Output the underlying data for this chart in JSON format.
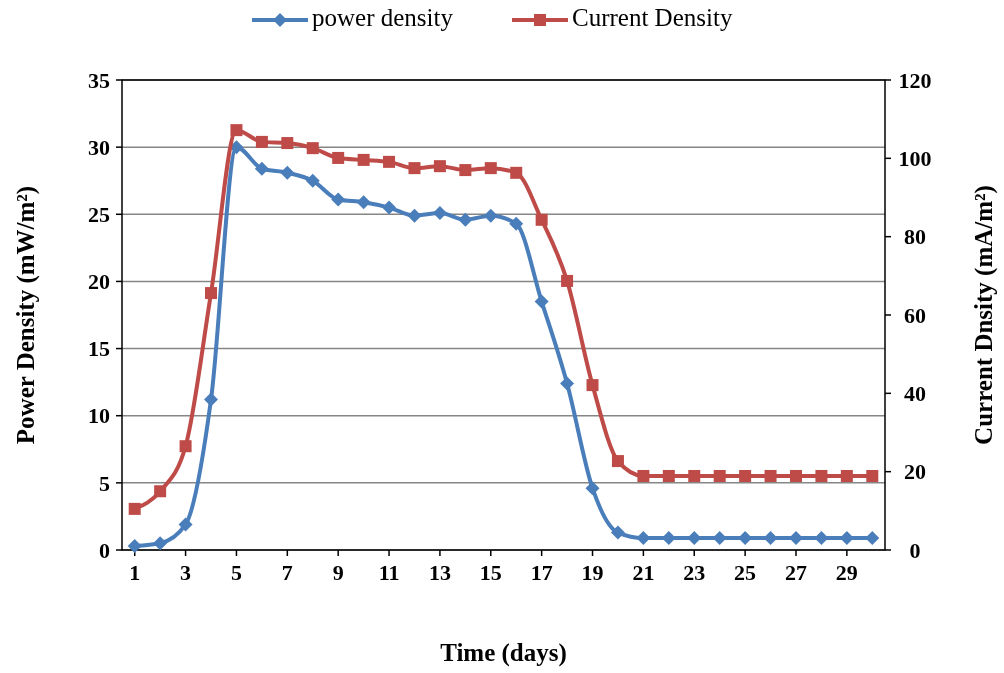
{
  "chart_data": {
    "type": "line",
    "xlabel": "Time (days)",
    "ylabel": "Power Density (mW/m²)",
    "y2label": "Current Dnsity (mA/m²)",
    "x": [
      1,
      2,
      3,
      4,
      5,
      6,
      7,
      8,
      9,
      10,
      11,
      12,
      13,
      14,
      15,
      16,
      17,
      18,
      19,
      20,
      21,
      22,
      23,
      24,
      25,
      26,
      27,
      28,
      29,
      30
    ],
    "xlim": [
      0.5,
      30.5
    ],
    "xticks": [
      1,
      3,
      5,
      7,
      9,
      11,
      13,
      15,
      17,
      19,
      21,
      23,
      25,
      27,
      29
    ],
    "ylim": [
      0,
      35
    ],
    "yticks": [
      0,
      5,
      10,
      15,
      20,
      25,
      30,
      35
    ],
    "y2lim": [
      0,
      120
    ],
    "y2ticks": [
      0,
      20,
      40,
      60,
      80,
      100,
      120
    ],
    "grid": "y",
    "legend": "top",
    "series": [
      {
        "name": "power density",
        "color": "#4a7ebb",
        "marker": "diamond",
        "values": [
          0.3,
          0.5,
          1.9,
          11.2,
          30,
          28.4,
          28.1,
          27.5,
          26.1,
          25.9,
          25.5,
          24.9,
          25.1,
          24.6,
          24.9,
          24.3,
          18.5,
          12.4,
          4.6,
          1.3,
          0.9,
          0.9,
          0.9,
          0.9,
          0.9,
          0.9,
          0.9,
          0.9,
          0.9,
          0.9
        ]
      },
      {
        "name": "Current Density",
        "color": "#be4b48",
        "marker": "square",
        "axis": "y2",
        "values": [
          10.5,
          15,
          26.5,
          65.6,
          107.2,
          104.2,
          103.9,
          102.6,
          100.1,
          99.6,
          99.1,
          97.5,
          98,
          97,
          97.5,
          96.3,
          84.3,
          68.7,
          42.1,
          22.7,
          18.9,
          18.9,
          18.9,
          18.9,
          18.9,
          18.9,
          18.9,
          18.9,
          18.9,
          18.9
        ]
      }
    ]
  }
}
